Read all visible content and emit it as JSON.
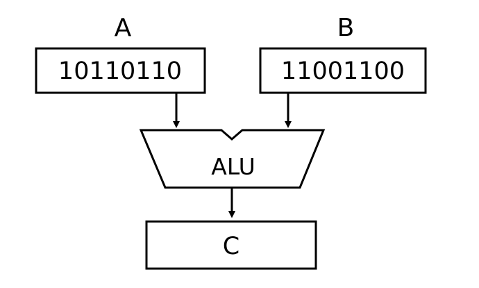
{
  "register_a": {
    "label": "A",
    "value": "10110110"
  },
  "register_b": {
    "label": "B",
    "value": "11001100"
  },
  "alu": {
    "label": "ALU"
  },
  "register_c": {
    "label": "C"
  },
  "colors": {
    "stroke": "#000000",
    "background": "#ffffff"
  }
}
